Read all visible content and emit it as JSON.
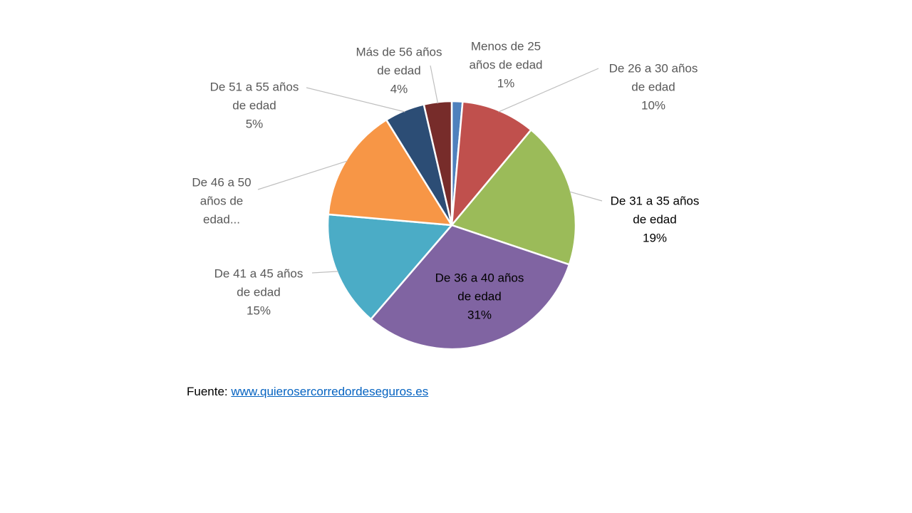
{
  "chart_data": {
    "type": "pie",
    "slices": [
      {
        "lines": [
          "Menos de 25",
          "años de edad"
        ],
        "percent_label": "1%",
        "value": 1.4,
        "color": "#4f81bd"
      },
      {
        "lines": [
          "De 26 a 30 años",
          "de edad"
        ],
        "percent_label": "10%",
        "value": 9.6,
        "color": "#c0504d"
      },
      {
        "lines": [
          "De 31 a 35 años",
          "de edad"
        ],
        "percent_label": "19%",
        "value": 19,
        "color": "#9bbb59"
      },
      {
        "lines": [
          "De 36 a 40 años",
          "de edad"
        ],
        "percent_label": "31%",
        "value": 31,
        "color": "#8064a2"
      },
      {
        "lines": [
          "De 41 a 45 años",
          "de edad"
        ],
        "percent_label": "15%",
        "value": 15,
        "color": "#4bacc6"
      },
      {
        "lines": [
          "De 46 a 50",
          "años de",
          "edad..."
        ],
        "percent_label": "",
        "value": 14.7,
        "color": "#f79646"
      },
      {
        "lines": [
          "De 51 a 55 años",
          "de edad"
        ],
        "percent_label": "5%",
        "value": 5.2,
        "color": "#2c4d75"
      },
      {
        "lines": [
          "Más de 56 años",
          "de edad"
        ],
        "percent_label": "4%",
        "value": 3.6,
        "color": "#772c2a"
      }
    ]
  },
  "source": {
    "prefix": "Fuente: ",
    "link_text": "www.quierosercorredordeseguros.es"
  }
}
